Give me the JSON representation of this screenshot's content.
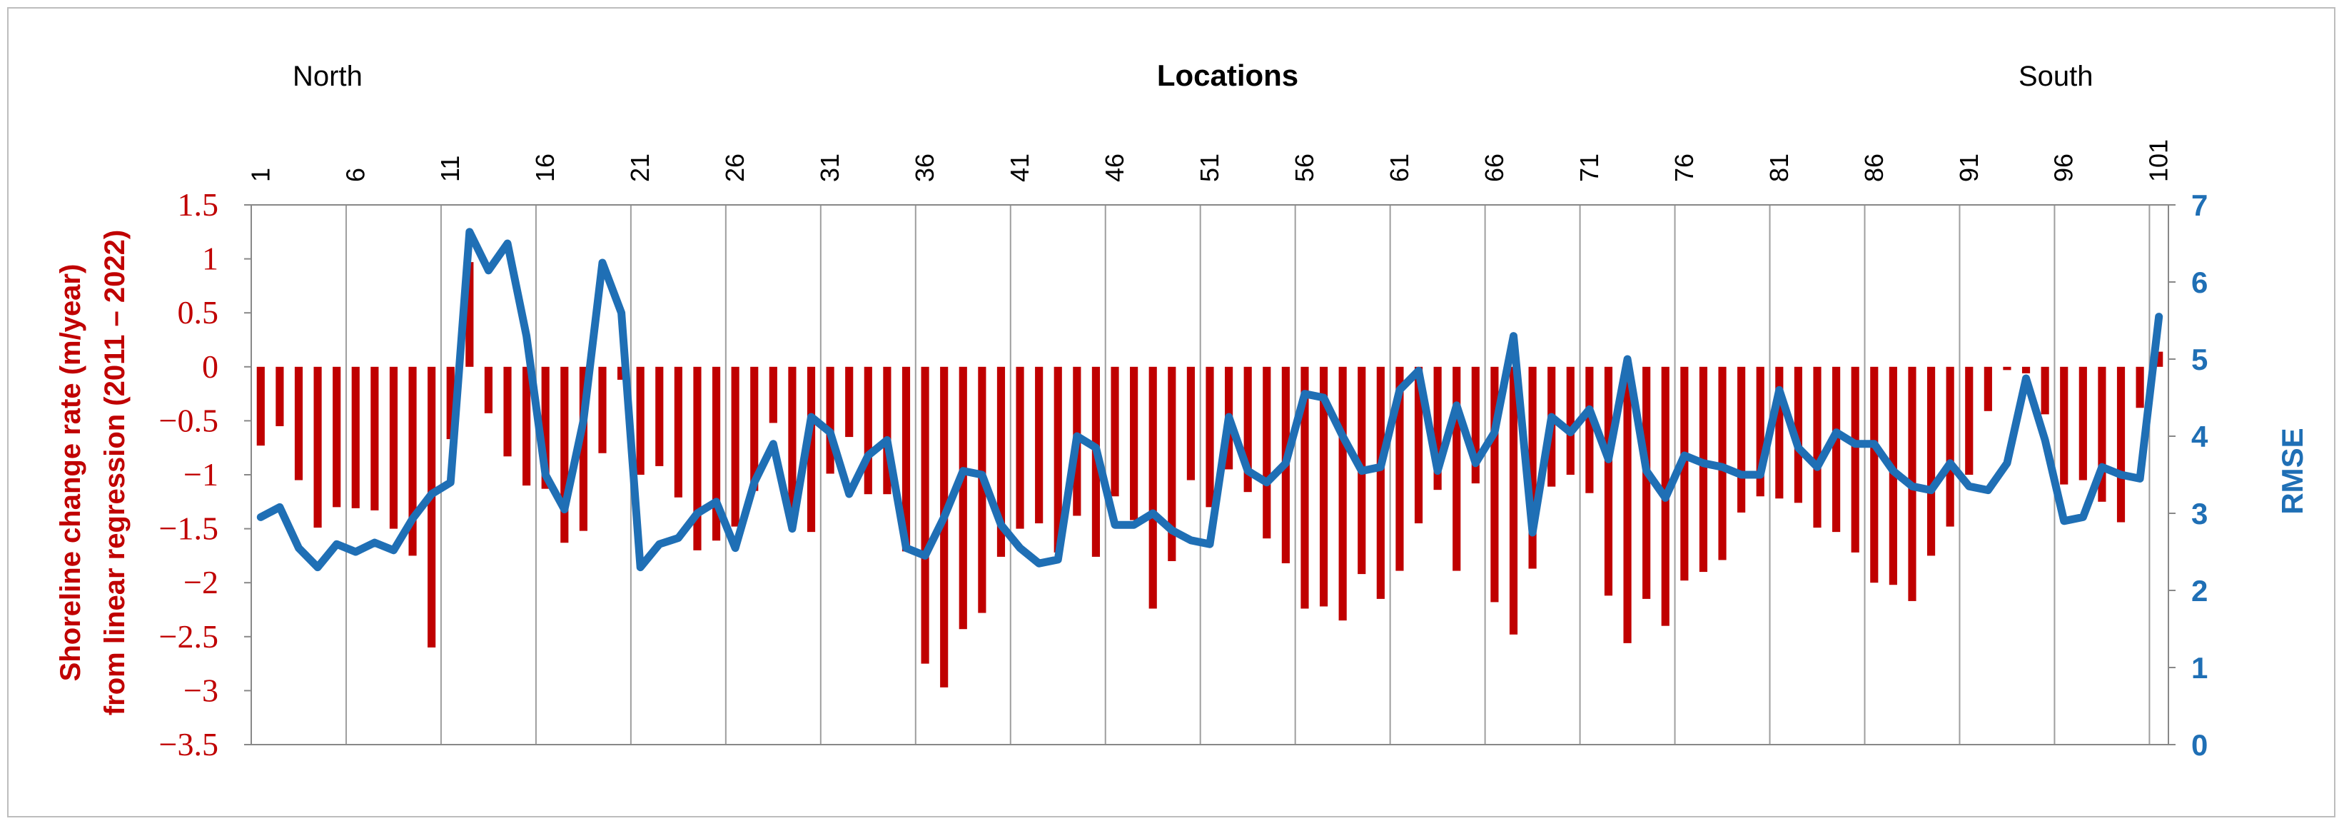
{
  "chart_data": {
    "type": "bar",
    "title": "Locations",
    "annotations": {
      "left": "North",
      "right": "South"
    },
    "x": [
      1,
      2,
      3,
      4,
      5,
      6,
      7,
      8,
      9,
      10,
      11,
      12,
      13,
      14,
      15,
      16,
      17,
      18,
      19,
      20,
      21,
      22,
      23,
      24,
      25,
      26,
      27,
      28,
      29,
      30,
      31,
      32,
      33,
      34,
      35,
      36,
      37,
      38,
      39,
      40,
      41,
      42,
      43,
      44,
      45,
      46,
      47,
      48,
      49,
      50,
      51,
      52,
      53,
      54,
      55,
      56,
      57,
      58,
      59,
      60,
      61,
      62,
      63,
      64,
      65,
      66,
      67,
      68,
      69,
      70,
      71,
      72,
      73,
      74,
      75,
      76,
      77,
      78,
      79,
      80,
      81,
      82,
      83,
      84,
      85,
      86,
      87,
      88,
      89,
      90,
      91,
      92,
      93,
      94,
      95,
      96,
      97,
      98,
      99,
      100,
      101
    ],
    "x_tick_labels": [
      "1",
      "6",
      "11",
      "16",
      "21",
      "26",
      "31",
      "36",
      "41",
      "46",
      "51",
      "56",
      "61",
      "66",
      "71",
      "76",
      "81",
      "86",
      "91",
      "96",
      "101"
    ],
    "ylabel_left": "Shoreline change rate (m/year) from linear regression (2011 – 2022)",
    "ylabel_left_lines": [
      "Shoreline change rate (m/year)",
      "from linear regression (2011 – 2022)"
    ],
    "ylabel_right": "RMSE",
    "ylim_left": [
      -3.5,
      1.5
    ],
    "ylim_right": [
      0,
      7
    ],
    "yticks_left": [
      "1.5",
      "1",
      "0.5",
      "0",
      "−0.5",
      "−1",
      "−1.5",
      "−2",
      "−2.5",
      "−3",
      "−3.5"
    ],
    "yticks_right": [
      "7",
      "6",
      "5",
      "4",
      "3",
      "2",
      "1",
      "0"
    ],
    "grid": "vertical every 5 locations",
    "series": [
      {
        "axis": "left",
        "type": "bar",
        "color": "#c00000",
        "values": [
          -0.73,
          -0.55,
          -1.05,
          -1.49,
          -1.3,
          -1.31,
          -1.33,
          -1.5,
          -1.75,
          -2.6,
          -0.67,
          0.97,
          -0.43,
          -0.83,
          -1.1,
          -1.13,
          -1.63,
          -1.52,
          -0.8,
          -0.12,
          -1.0,
          -0.92,
          -1.21,
          -1.7,
          -1.61,
          -1.48,
          -1.15,
          -0.52,
          -1.45,
          -1.53,
          -0.99,
          -0.65,
          -1.18,
          -1.18,
          -1.71,
          -2.75,
          -2.97,
          -2.43,
          -2.28,
          -1.76,
          -1.5,
          -1.45,
          -1.72,
          -1.38,
          -1.76,
          -1.2,
          -1.42,
          -2.24,
          -1.8,
          -1.05,
          -1.3,
          -0.95,
          -1.16,
          -1.59,
          -1.82,
          -2.24,
          -2.22,
          -2.35,
          -1.92,
          -2.15,
          -1.89,
          -1.45,
          -1.14,
          -1.89,
          -1.08,
          -2.18,
          -2.48,
          -1.87,
          -1.11,
          -1.0,
          -1.17,
          -2.12,
          -2.56,
          -2.15,
          -2.4,
          -1.98,
          -1.9,
          -1.79,
          -1.35,
          -1.2,
          -1.22,
          -1.26,
          -1.49,
          -1.53,
          -1.72,
          -2.0,
          -2.02,
          -2.17,
          -1.75,
          -1.48,
          -1.0,
          -0.41,
          -0.03,
          -0.06,
          -0.44,
          -1.09,
          -1.05,
          -1.25,
          -1.44,
          -0.38,
          0.14
        ]
      },
      {
        "axis": "right",
        "type": "line",
        "color": "#1f6fb5",
        "values": [
          2.95,
          3.08,
          2.55,
          2.3,
          2.6,
          2.5,
          2.62,
          2.52,
          2.93,
          3.25,
          3.4,
          6.65,
          6.15,
          6.5,
          5.3,
          3.5,
          3.05,
          4.2,
          6.25,
          5.6,
          2.3,
          2.6,
          2.68,
          3.0,
          3.15,
          2.55,
          3.4,
          3.9,
          2.8,
          4.25,
          4.05,
          3.25,
          3.75,
          3.95,
          2.55,
          2.45,
          2.95,
          3.55,
          3.5,
          2.85,
          2.55,
          2.35,
          2.4,
          4.0,
          3.85,
          2.85,
          2.85,
          3.0,
          2.78,
          2.65,
          2.6,
          4.25,
          3.55,
          3.4,
          3.65,
          4.55,
          4.5,
          4.0,
          3.55,
          3.6,
          4.6,
          4.85,
          3.55,
          4.4,
          3.65,
          4.05,
          5.3,
          2.75,
          4.25,
          4.05,
          4.35,
          3.7,
          5.0,
          3.55,
          3.2,
          3.75,
          3.65,
          3.6,
          3.5,
          3.5,
          4.6,
          3.85,
          3.6,
          4.05,
          3.9,
          3.9,
          3.55,
          3.35,
          3.3,
          3.65,
          3.35,
          3.3,
          3.65,
          4.75,
          3.95,
          2.9,
          2.95,
          3.6,
          3.5,
          3.45,
          5.55
        ]
      }
    ]
  }
}
